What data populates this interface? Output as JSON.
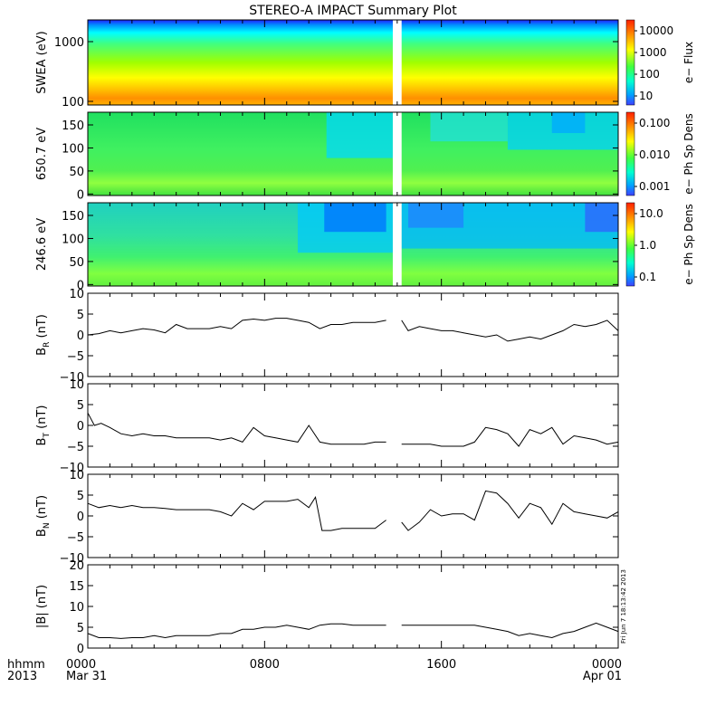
{
  "title": "STEREO-A IMPACT Summary Plot",
  "time_axis": {
    "row_label_1": "hhmm",
    "row_label_2": "2013",
    "ticks": [
      {
        "label": "0000",
        "sub": "Mar 31",
        "hour": 0
      },
      {
        "label": "0800",
        "sub": "",
        "hour": 8
      },
      {
        "label": "1600",
        "sub": "",
        "hour": 16
      },
      {
        "label": "0000",
        "sub": "Apr 01",
        "hour": 24
      }
    ]
  },
  "timestamp_annotation": "Fri Jun  7 18:13:42 2013",
  "colors": {
    "line": "#000000",
    "background": "#ffffff",
    "spectrogram_low": "#2a2aff",
    "spectrogram_high": "#ff2a00"
  },
  "chart_data": [
    {
      "type": "heatmap",
      "ylabel": "SWEA (eV)",
      "yscale": "log",
      "yticks": [
        "1000",
        "100"
      ],
      "colorbar_label": "e− Flux",
      "colorbar_ticks": [
        "10000",
        "1000",
        "100",
        "10"
      ],
      "data_gap_hours": [
        13.8,
        14.2
      ]
    },
    {
      "type": "heatmap",
      "ylabel": "650.7 eV",
      "ylim": [
        0,
        180
      ],
      "yticks": [
        "150",
        "100",
        "50",
        "0"
      ],
      "colorbar_label": "e− Ph Sp Dens",
      "colorbar_ticks": [
        "0.100",
        "0.010",
        "0.001"
      ],
      "data_gap_hours": [
        13.8,
        14.2
      ]
    },
    {
      "type": "heatmap",
      "ylabel": "246.6 eV",
      "ylim": [
        0,
        180
      ],
      "yticks": [
        "150",
        "100",
        "50",
        "0"
      ],
      "colorbar_label": "e− Ph Sp Dens",
      "colorbar_ticks": [
        "10.0",
        "1.0",
        "0.1"
      ],
      "data_gap_hours": [
        13.8,
        14.2
      ]
    },
    {
      "type": "line",
      "ylabel_main": "B",
      "ylabel_sub": "R",
      "ylabel_unit": " (nT)",
      "ylim": [
        -10,
        10
      ],
      "yticks": [
        "10",
        "5",
        "0",
        "−5",
        "−10"
      ],
      "segments": [
        {
          "x": [
            0,
            0.5,
            1,
            1.5,
            2,
            2.5,
            3,
            3.5,
            4,
            4.5,
            5,
            5.5,
            6,
            6.5,
            7,
            7.5,
            8,
            8.5,
            9,
            9.5,
            10,
            10.5,
            11,
            11.5,
            12,
            12.5,
            13,
            13.5
          ],
          "y": [
            0,
            0.3,
            1,
            0.5,
            1,
            1.5,
            1.2,
            0.5,
            2.5,
            1.5,
            1.5,
            1.5,
            2,
            1.5,
            3.5,
            3.8,
            3.5,
            4,
            4,
            3.5,
            3,
            1.5,
            2.5,
            2.5,
            3,
            3,
            3,
            3.5
          ]
        },
        {
          "x": [
            14.2,
            14.5,
            15,
            15.5,
            16,
            16.5,
            17,
            17.5,
            18,
            18.5,
            19,
            19.5,
            20,
            20.5,
            21,
            21.5,
            22,
            22.5,
            23,
            23.5,
            24
          ],
          "y": [
            3.5,
            1,
            2,
            1.5,
            1,
            1,
            0.5,
            0,
            -0.5,
            0,
            -1.5,
            -1,
            -0.5,
            -1,
            0,
            1,
            2.5,
            2,
            2.5,
            3.5,
            1
          ]
        }
      ]
    },
    {
      "type": "line",
      "ylabel_main": "B",
      "ylabel_sub": "T",
      "ylabel_unit": " (nT)",
      "ylim": [
        -10,
        10
      ],
      "yticks": [
        "10",
        "5",
        "0",
        "−5",
        "−10"
      ],
      "segments": [
        {
          "x": [
            0,
            0.3,
            0.6,
            1,
            1.5,
            2,
            2.5,
            3,
            3.5,
            4,
            4.5,
            5,
            5.5,
            6,
            6.5,
            7,
            7.5,
            8,
            8.5,
            9,
            9.5,
            10,
            10.5,
            11,
            11.5,
            12,
            12.5,
            13,
            13.5
          ],
          "y": [
            3,
            0,
            0.5,
            -0.5,
            -2,
            -2.5,
            -2,
            -2.5,
            -2.5,
            -3,
            -3,
            -3,
            -3,
            -3.5,
            -3,
            -4,
            -0.5,
            -2.5,
            -3,
            -3.5,
            -4,
            0,
            -4,
            -4.5,
            -4.5,
            -4.5,
            -4.5,
            -4,
            -4
          ]
        },
        {
          "x": [
            14.2,
            14.5,
            15,
            15.5,
            16,
            16.5,
            17,
            17.5,
            18,
            18.5,
            19,
            19.5,
            20,
            20.5,
            21,
            21.5,
            22,
            22.5,
            23,
            23.5,
            24
          ],
          "y": [
            -4.5,
            -4.5,
            -4.5,
            -4.5,
            -5,
            -5,
            -5,
            -4,
            -0.5,
            -1,
            -2,
            -5,
            -1,
            -2,
            -0.5,
            -4.5,
            -2.5,
            -3,
            -3.5,
            -4.5,
            -4
          ]
        }
      ]
    },
    {
      "type": "line",
      "ylabel_main": "B",
      "ylabel_sub": "N",
      "ylabel_unit": " (nT)",
      "ylim": [
        -10,
        10
      ],
      "yticks": [
        "10",
        "5",
        "0",
        "−5",
        "−10"
      ],
      "segments": [
        {
          "x": [
            0,
            0.5,
            1,
            1.5,
            2,
            2.5,
            3,
            3.5,
            4,
            4.5,
            5,
            5.5,
            6,
            6.5,
            7,
            7.5,
            8,
            8.5,
            9,
            9.5,
            10,
            10.3,
            10.6,
            11,
            11.5,
            12,
            12.5,
            13,
            13.5
          ],
          "y": [
            3,
            2,
            2.5,
            2,
            2.5,
            2,
            2,
            1.8,
            1.5,
            1.5,
            1.5,
            1.5,
            1,
            0,
            3,
            1.5,
            3.5,
            3.5,
            3.5,
            4,
            2,
            4.5,
            -3.5,
            -3.5,
            -3,
            -3,
            -3,
            -3,
            -1
          ]
        },
        {
          "x": [
            14.2,
            14.5,
            15,
            15.5,
            16,
            16.5,
            17,
            17.5,
            18,
            18.5,
            19,
            19.5,
            20,
            20.5,
            21,
            21.5,
            22,
            22.5,
            23,
            23.5,
            24
          ],
          "y": [
            -1.5,
            -3.5,
            -1.5,
            1.5,
            0,
            0.5,
            0.5,
            -1,
            6,
            5.5,
            3,
            -0.5,
            3,
            2,
            -2,
            3,
            1,
            0.5,
            0,
            -0.5,
            1
          ]
        }
      ]
    },
    {
      "type": "line",
      "ylabel": "|B| (nT)",
      "ylim": [
        0,
        20
      ],
      "yticks": [
        "20",
        "15",
        "10",
        "5",
        "0"
      ],
      "segments": [
        {
          "x": [
            0,
            0.5,
            1,
            1.5,
            2,
            2.5,
            3,
            3.5,
            4,
            4.5,
            5,
            5.5,
            6,
            6.5,
            7,
            7.5,
            8,
            8.5,
            9,
            9.5,
            10,
            10.5,
            11,
            11.5,
            12,
            12.5,
            13,
            13.5
          ],
          "y": [
            3.5,
            2.5,
            2.5,
            2.3,
            2.5,
            2.5,
            3,
            2.5,
            3,
            3,
            3,
            3,
            3.5,
            3.5,
            4.5,
            4.5,
            5,
            5,
            5.5,
            5,
            4.5,
            5.5,
            5.8,
            5.8,
            5.5,
            5.5,
            5.5,
            5.5
          ]
        },
        {
          "x": [
            14.2,
            14.5,
            15,
            15.5,
            16,
            16.5,
            17,
            17.5,
            18,
            18.5,
            19,
            19.5,
            20,
            20.5,
            21,
            21.5,
            22,
            22.5,
            23,
            23.5,
            24
          ],
          "y": [
            5.5,
            5.5,
            5.5,
            5.5,
            5.5,
            5.5,
            5.5,
            5.5,
            5,
            4.5,
            4,
            3,
            3.5,
            3,
            2.5,
            3.5,
            4,
            5,
            6,
            5,
            4
          ]
        }
      ]
    }
  ]
}
